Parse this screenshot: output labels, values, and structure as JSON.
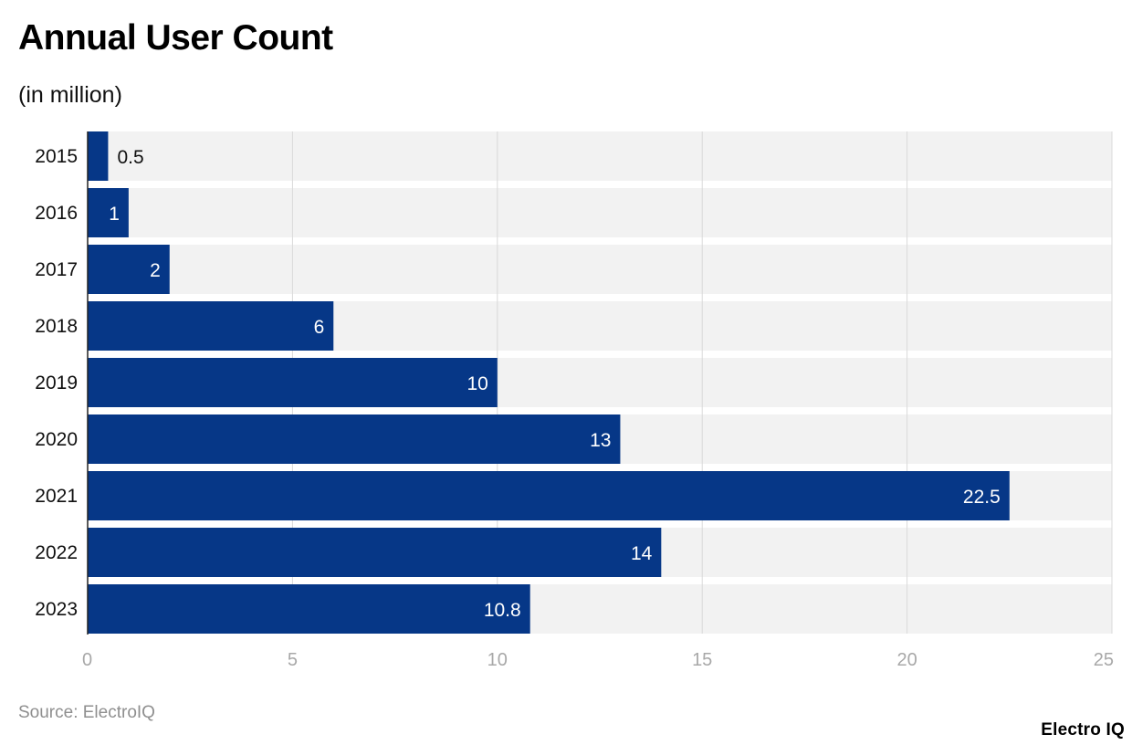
{
  "header": {
    "title": "Annual User Count",
    "subtitle": "(in million)"
  },
  "footer": {
    "source": "Source: ElectroIQ",
    "brand": "Electro IQ"
  },
  "colors": {
    "bar": "#063787",
    "band": "#f2f2f2",
    "grid": "#d9d9d9",
    "label_inside": "#ffffff",
    "label_outside": "#111111"
  },
  "chart_data": {
    "type": "bar",
    "orientation": "horizontal",
    "categories": [
      "2015",
      "2016",
      "2017",
      "2018",
      "2019",
      "2020",
      "2021",
      "2022",
      "2023"
    ],
    "values": [
      0.5,
      1,
      2,
      6,
      10,
      13,
      22.5,
      14,
      10.8
    ],
    "data_labels": [
      "0.5",
      "1",
      "2",
      "6",
      "10",
      "13",
      "22.5",
      "14",
      "10.8"
    ],
    "title": "Annual User Count",
    "subtitle": "(in million)",
    "xlim": [
      0,
      25
    ],
    "xticks": [
      0,
      5,
      10,
      15,
      20,
      25
    ],
    "grid": true
  }
}
